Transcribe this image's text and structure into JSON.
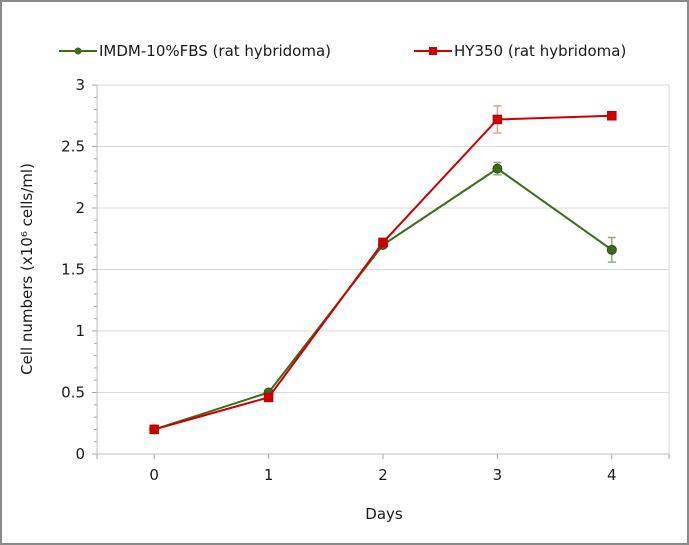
{
  "window": {
    "background": "#ffffff",
    "border_color": "#8a8a8a"
  },
  "legend": {
    "position": "top",
    "items": [
      {
        "label": "IMDM-10%FBS (rat hybridoma)",
        "color": "#3e6b1a",
        "marker": "circle"
      },
      {
        "label": "HY350 (rat hybridoma)",
        "color": "#cc0000",
        "marker": "square"
      }
    ]
  },
  "chart_data": {
    "type": "line",
    "title": "",
    "xlabel": "Days",
    "ylabel": "Cell numbers (x10⁶ cells/ml)",
    "categories": [
      "0",
      "1",
      "2",
      "3",
      "4"
    ],
    "ylim": [
      0,
      3
    ],
    "ytick_step": 0.5,
    "yminor_step": 0.1,
    "grid": true,
    "legend_position": "top",
    "series": [
      {
        "name": "IMDM-10%FBS (rat hybridoma)",
        "marker": "circle",
        "color": "#3e6b1a",
        "marker_stroke": "#2b4c10",
        "error_color": "#92a87e",
        "values": [
          0.2,
          0.5,
          1.7,
          2.32,
          1.66
        ],
        "errors": [
          0,
          0,
          0,
          0.05,
          0.1
        ]
      },
      {
        "name": "HY350 (rat hybridoma)",
        "marker": "square",
        "color": "#cc0000",
        "marker_stroke": "#a50000",
        "error_color": "#e89b9b",
        "values": [
          0.2,
          0.46,
          1.72,
          2.72,
          2.75
        ],
        "errors": [
          0,
          0,
          0,
          0.11,
          0
        ]
      }
    ],
    "colors": {
      "grid": "#d9d9d9",
      "plot_border": "#d9d9d9",
      "axis": "#bfbfbf",
      "tick": "#a6a6a6",
      "text": "#1a1a1a"
    }
  }
}
